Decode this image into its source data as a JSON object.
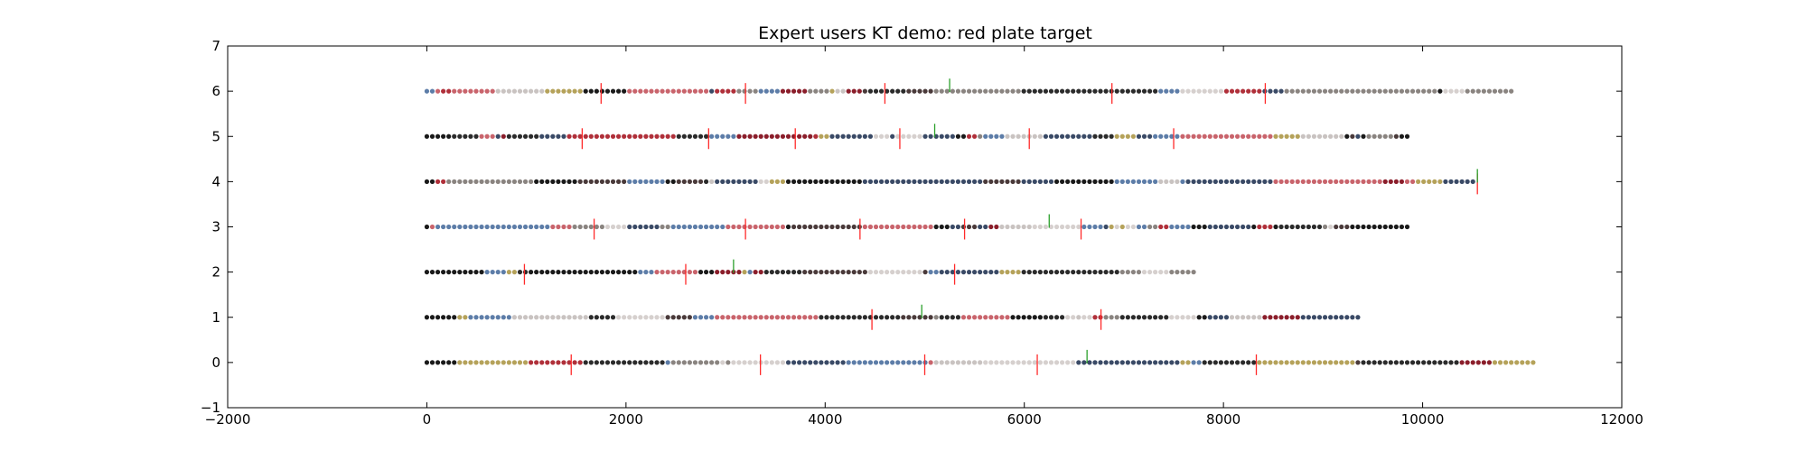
{
  "chart_data": {
    "type": "scatter",
    "title": "Expert users KT demo: red plate target",
    "xlabel": "",
    "ylabel": "",
    "xlim": [
      -2000,
      12000
    ],
    "ylim": [
      -1,
      7
    ],
    "x_ticks": [
      -2000,
      0,
      2000,
      4000,
      6000,
      8000,
      10000,
      12000
    ],
    "y_ticks": [
      -1,
      0,
      1,
      2,
      3,
      4,
      5,
      6,
      7
    ],
    "x_tick_labels": [
      "−2000",
      "0",
      "2000",
      "4000",
      "6000",
      "8000",
      "10000",
      "12000"
    ],
    "y_tick_labels": [
      "−1",
      "0",
      "1",
      "2",
      "3",
      "4",
      "5",
      "6",
      "7"
    ],
    "grid": false,
    "series": [
      {
        "y": 0,
        "length": 11150,
        "markers": [
          {
            "x": 1450,
            "color": "red"
          },
          {
            "x": 3350,
            "color": "red"
          },
          {
            "x": 5000,
            "color": "red"
          },
          {
            "x": 6130,
            "color": "red"
          },
          {
            "x": 6630,
            "color": "green"
          },
          {
            "x": 8330,
            "color": "red"
          }
        ]
      },
      {
        "y": 1,
        "length": 9350,
        "markers": [
          {
            "x": 4470,
            "color": "red"
          },
          {
            "x": 4970,
            "color": "green"
          },
          {
            "x": 6770,
            "color": "red"
          }
        ]
      },
      {
        "y": 2,
        "length": 7700,
        "markers": [
          {
            "x": 980,
            "color": "red"
          },
          {
            "x": 2600,
            "color": "red"
          },
          {
            "x": 3080,
            "color": "green"
          },
          {
            "x": 5300,
            "color": "red"
          }
        ]
      },
      {
        "y": 3,
        "length": 9870,
        "markers": [
          {
            "x": 1680,
            "color": "red"
          },
          {
            "x": 3200,
            "color": "red"
          },
          {
            "x": 4350,
            "color": "red"
          },
          {
            "x": 5400,
            "color": "red"
          },
          {
            "x": 6250,
            "color": "green"
          },
          {
            "x": 6570,
            "color": "red"
          }
        ]
      },
      {
        "y": 4,
        "length": 10550,
        "markers": [
          {
            "x": 10550,
            "color": "red"
          },
          {
            "x": 10550,
            "color": "green"
          }
        ]
      },
      {
        "y": 5,
        "length": 9870,
        "markers": [
          {
            "x": 1560,
            "color": "red"
          },
          {
            "x": 2830,
            "color": "red"
          },
          {
            "x": 3700,
            "color": "red"
          },
          {
            "x": 4750,
            "color": "red"
          },
          {
            "x": 5100,
            "color": "green"
          },
          {
            "x": 6050,
            "color": "red"
          },
          {
            "x": 7500,
            "color": "red"
          }
        ]
      },
      {
        "y": 6,
        "length": 10900,
        "markers": [
          {
            "x": 1750,
            "color": "red"
          },
          {
            "x": 3200,
            "color": "red"
          },
          {
            "x": 4600,
            "color": "red"
          },
          {
            "x": 5250,
            "color": "green"
          },
          {
            "x": 6880,
            "color": "red"
          },
          {
            "x": 8420,
            "color": "red"
          }
        ]
      }
    ],
    "point_colors": [
      "#1a1a1a",
      "#2b2b2b",
      "#c9c3c1",
      "#d6d0ce",
      "#8b1e2b",
      "#b0303a",
      "#3a4a66",
      "#5d7da8",
      "#8a8480",
      "#4a3a3a",
      "#b5a25a",
      "#c9646c"
    ]
  }
}
